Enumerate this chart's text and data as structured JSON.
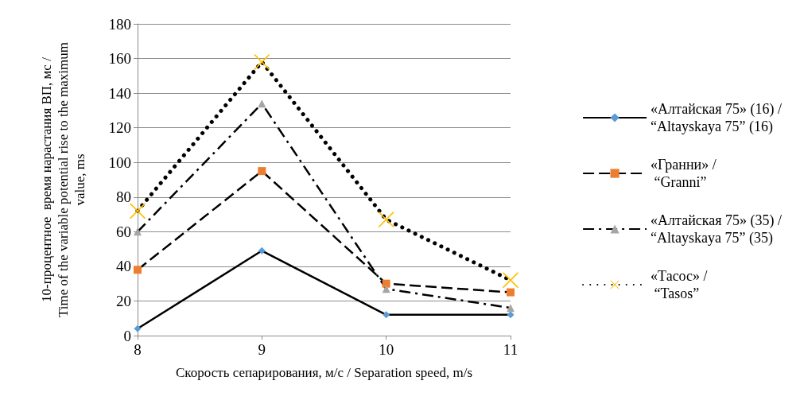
{
  "chart_data": {
    "type": "line",
    "xlabel": "Скорость сепарирования, м/с / Separation speed, m/s",
    "ylabel": "10-процентное  время нарастания ВП, мс /\nTime of the variable potential rise to the maximum\nvalue, ms",
    "x": [
      8,
      9,
      10,
      11
    ],
    "xlim": [
      8,
      11
    ],
    "xticks": [
      8,
      9,
      10,
      11
    ],
    "ylim": [
      0,
      180
    ],
    "yticks": [
      0,
      20,
      40,
      60,
      80,
      100,
      120,
      140,
      160,
      180
    ],
    "grid": "y",
    "legend": "right",
    "series": [
      {
        "name": "«Алтайская 75» (16) /\n“Altayskaya 75” (16)",
        "color": "#5b9bd5",
        "marker": "diamond",
        "line_style": "solid",
        "values": [
          4,
          49,
          12,
          12
        ]
      },
      {
        "name": "«Гранни» /\n “Granni”",
        "color": "#ed7d31",
        "marker": "square",
        "line_style": "dashed",
        "values": [
          38,
          95,
          30,
          25
        ]
      },
      {
        "name": "«Алтайская 75» (35) /\n“Altayskaya 75” (35)",
        "color": "#a5a5a5",
        "marker": "triangle",
        "line_style": "dashdot",
        "values": [
          60,
          134,
          27,
          16
        ]
      },
      {
        "name": "«Тасос» /\n “Tasos”",
        "color": "#ffc000",
        "marker": "cross",
        "line_style": "dotted",
        "values": [
          72,
          158,
          67,
          32
        ]
      }
    ]
  }
}
